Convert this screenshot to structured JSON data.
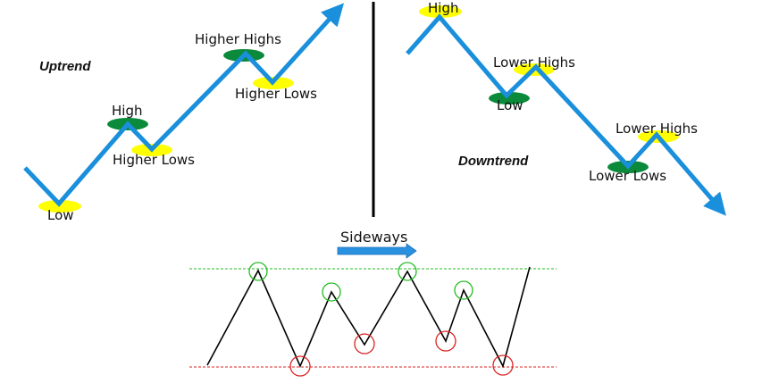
{
  "colors": {
    "trend_line": "#1a8fdc",
    "low_marker": "#ffff00",
    "high_marker": "#0a8a3a",
    "divider": "#000000",
    "resistance_line": "#22bb22",
    "support_line": "#dd2222",
    "peak_circle": "#22bb22",
    "trough_circle": "#dd2222",
    "sideways_line": "#000000",
    "sideways_arrow": "#2a90e0"
  },
  "uptrend": {
    "title": "Uptrend",
    "labels": {
      "low": "Low",
      "high": "High",
      "higher_lows_1": "Higher Lows",
      "higher_highs": "Higher Highs",
      "higher_lows_2": "Higher Lows"
    }
  },
  "downtrend": {
    "title": "Downtrend",
    "labels": {
      "high": "High",
      "lower_highs_1": "Lower Highs",
      "low": "Low",
      "lower_highs_2": "Lower Highs",
      "lower_lows": "Lower Lows"
    }
  },
  "sideways": {
    "title": "Sideways"
  }
}
